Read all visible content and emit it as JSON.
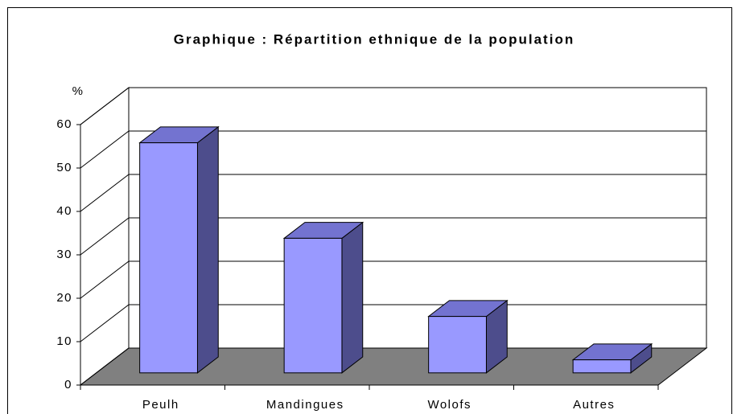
{
  "chart_data": {
    "type": "bar3d",
    "title": "Graphique : Répartition ethnique de la population",
    "y_label": "%",
    "categories": [
      "Peulh",
      "Mandingues",
      "Wolofs",
      "Autres"
    ],
    "values": [
      53,
      31,
      13,
      3
    ],
    "color": "#9999ff",
    "ylim": [
      0,
      60
    ],
    "yticks": [
      0,
      10,
      20,
      30,
      40,
      50,
      60
    ],
    "grid": true
  }
}
